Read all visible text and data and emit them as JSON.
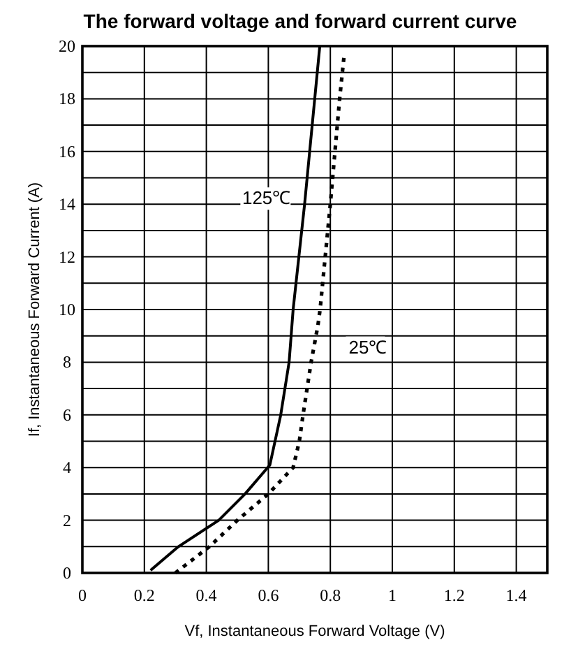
{
  "chart_data": {
    "type": "line",
    "title": "The forward voltage and forward current curve",
    "xlabel": "Vf, Instantaneous Forward Voltage (V)",
    "ylabel": "If, Instantaneous Forward Current (A)",
    "xlim": [
      0,
      1.5
    ],
    "xticks": [
      0,
      0.2,
      0.4,
      0.6,
      0.8,
      1,
      1.2,
      1.4
    ],
    "ylim": [
      0,
      20
    ],
    "yticks": [
      0,
      {
        "value": 1,
        "label": null
      },
      2,
      {
        "value": 3,
        "label": null
      },
      4,
      {
        "value": 5,
        "label": null
      },
      6,
      {
        "value": 7,
        "label": null
      },
      8,
      {
        "value": 9,
        "label": null
      },
      10,
      {
        "value": 11,
        "label": null
      },
      12,
      {
        "value": 13,
        "label": null
      },
      14,
      {
        "value": 15,
        "label": null
      },
      16,
      {
        "value": 17,
        "label": null
      },
      18,
      {
        "value": 19,
        "label": null
      },
      20
    ],
    "grid": true,
    "marker": "none",
    "series": [
      {
        "name": "125℃",
        "color": "#000000",
        "line_style": "solid",
        "x": [
          0.22,
          0.31,
          0.44,
          0.525,
          0.605,
          0.64,
          0.667,
          0.68,
          0.717,
          0.766
        ],
        "values": [
          0.1,
          1,
          2,
          3,
          4.1,
          6,
          8,
          10,
          14,
          20
        ]
      },
      {
        "name": "25℃",
        "color": "#000000",
        "line_style": "dotted",
        "x": [
          0.3,
          0.41,
          0.5,
          0.6,
          0.68,
          0.7,
          0.712,
          0.738,
          0.76,
          0.767,
          0.8,
          0.815,
          0.83,
          0.845
        ],
        "values": [
          0,
          1,
          2,
          3,
          4,
          5,
          6,
          8,
          9.4,
          10,
          14,
          16,
          18,
          19.7
        ]
      }
    ]
  }
}
